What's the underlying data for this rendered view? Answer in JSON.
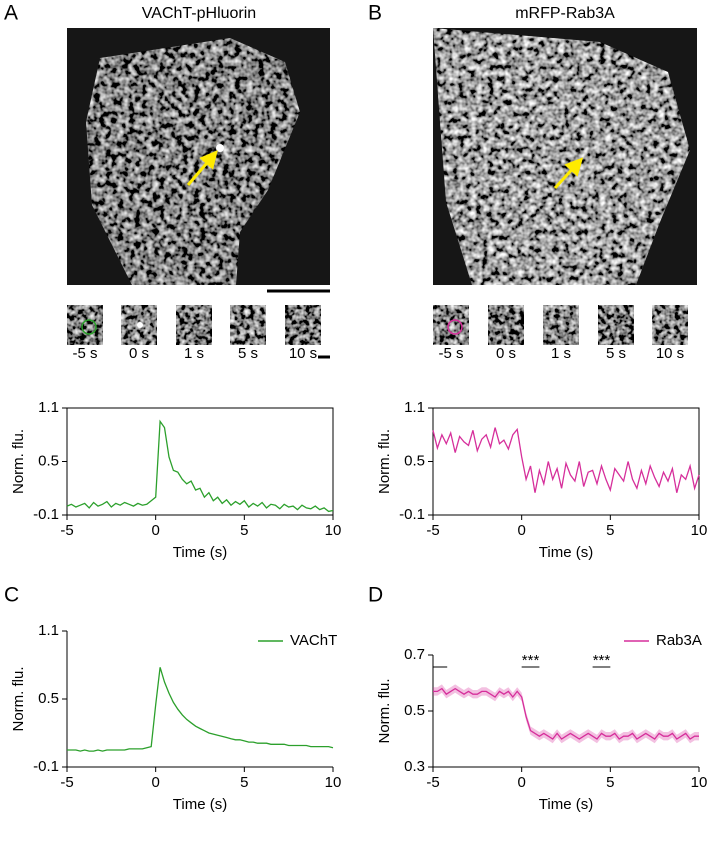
{
  "figure": {
    "panel_labels": [
      "A",
      "B",
      "C",
      "D"
    ],
    "image_titles": [
      "VAChT-pHluorin",
      "mRFP-Rab3A"
    ],
    "frame_labels": [
      "-5 s",
      "0 s",
      "1 s",
      "5 s",
      "10 s"
    ]
  },
  "chart_data": [
    {
      "type": "line",
      "frame": true,
      "color": "#2ca02c",
      "xlabel": "Time (s)",
      "ylabel": "Norm. flu.",
      "xlim": [
        -5,
        10
      ],
      "xticks": [
        -5,
        0,
        5,
        10
      ],
      "ylim": [
        -0.1,
        1.1
      ],
      "yticks": [
        -0.1,
        0.5,
        1.1
      ],
      "x": [
        -5,
        -4.75,
        -4.5,
        -4.25,
        -4,
        -3.75,
        -3.5,
        -3.25,
        -3,
        -2.75,
        -2.5,
        -2.25,
        -2,
        -1.75,
        -1.5,
        -1.25,
        -1,
        -0.75,
        -0.5,
        -0.25,
        0,
        0.25,
        0.5,
        0.75,
        1,
        1.25,
        1.5,
        1.75,
        2,
        2.25,
        2.5,
        2.75,
        3,
        3.25,
        3.5,
        3.75,
        4,
        4.25,
        4.5,
        4.75,
        5,
        5.25,
        5.5,
        5.75,
        6,
        6.25,
        6.5,
        6.75,
        7,
        7.25,
        7.5,
        7.75,
        8,
        8.25,
        8.5,
        8.75,
        9,
        9.25,
        9.5,
        9.75,
        10
      ],
      "values": [
        0.0,
        0.02,
        -0.01,
        0.01,
        0.03,
        -0.02,
        0.04,
        0.0,
        0.02,
        0.05,
        -0.01,
        0.03,
        0.01,
        0.04,
        0.02,
        0.0,
        0.03,
        0.01,
        0.02,
        0.06,
        0.1,
        0.95,
        0.88,
        0.55,
        0.4,
        0.38,
        0.3,
        0.25,
        0.28,
        0.18,
        0.2,
        0.1,
        0.15,
        0.06,
        0.1,
        0.03,
        0.07,
        0.01,
        0.05,
        0.02,
        0.06,
        -0.01,
        0.03,
        0.0,
        0.04,
        -0.02,
        0.02,
        0.01,
        -0.03,
        0.02,
        -0.01,
        0.0,
        -0.04,
        0.01,
        -0.02,
        -0.03,
        0.0,
        -0.04,
        -0.02,
        -0.06,
        -0.05
      ]
    },
    {
      "type": "line",
      "frame": true,
      "color": "#d62f9b",
      "xlabel": "Time (s)",
      "ylabel": "Norm. flu.",
      "xlim": [
        -5,
        10
      ],
      "xticks": [
        -5,
        0,
        5,
        10
      ],
      "ylim": [
        -0.1,
        1.1
      ],
      "yticks": [
        -0.1,
        0.5,
        1.1
      ],
      "x": [
        -5,
        -4.75,
        -4.5,
        -4.25,
        -4,
        -3.75,
        -3.5,
        -3.25,
        -3,
        -2.75,
        -2.5,
        -2.25,
        -2,
        -1.75,
        -1.5,
        -1.25,
        -1,
        -0.75,
        -0.5,
        -0.25,
        0,
        0.25,
        0.5,
        0.75,
        1,
        1.25,
        1.5,
        1.75,
        2,
        2.25,
        2.5,
        2.75,
        3,
        3.25,
        3.5,
        3.75,
        4,
        4.25,
        4.5,
        4.75,
        5,
        5.25,
        5.5,
        5.75,
        6,
        6.25,
        6.5,
        6.75,
        7,
        7.25,
        7.5,
        7.75,
        8,
        8.25,
        8.5,
        8.75,
        9,
        9.25,
        9.5,
        9.75,
        10
      ],
      "values": [
        0.85,
        0.65,
        0.8,
        0.7,
        0.82,
        0.6,
        0.78,
        0.72,
        0.68,
        0.85,
        0.62,
        0.75,
        0.8,
        0.66,
        0.88,
        0.7,
        0.74,
        0.64,
        0.8,
        0.86,
        0.55,
        0.3,
        0.45,
        0.15,
        0.4,
        0.25,
        0.5,
        0.3,
        0.42,
        0.2,
        0.48,
        0.35,
        0.28,
        0.5,
        0.22,
        0.38,
        0.4,
        0.25,
        0.45,
        0.3,
        0.18,
        0.42,
        0.35,
        0.28,
        0.5,
        0.3,
        0.2,
        0.4,
        0.25,
        0.45,
        0.32,
        0.22,
        0.38,
        0.28,
        0.42,
        0.15,
        0.35,
        0.3,
        0.45,
        0.2,
        0.35
      ]
    },
    {
      "type": "line",
      "frame": false,
      "legend": "upper right",
      "xlabel": "Time (s)",
      "ylabel": "Norm. flu.",
      "xlim": [
        -5,
        10
      ],
      "xticks": [
        -5,
        0,
        5,
        10
      ],
      "ylim": [
        -0.1,
        1.1
      ],
      "yticks": [
        -0.1,
        0.5,
        1.1
      ],
      "x": [
        -5,
        -4.75,
        -4.5,
        -4.25,
        -4,
        -3.75,
        -3.5,
        -3.25,
        -3,
        -2.75,
        -2.5,
        -2.25,
        -2,
        -1.75,
        -1.5,
        -1.25,
        -1,
        -0.75,
        -0.5,
        -0.25,
        0,
        0.25,
        0.5,
        0.75,
        1,
        1.25,
        1.5,
        1.75,
        2,
        2.25,
        2.5,
        2.75,
        3,
        3.25,
        3.5,
        3.75,
        4,
        4.25,
        4.5,
        4.75,
        5,
        5.25,
        5.5,
        5.75,
        6,
        6.25,
        6.5,
        6.75,
        7,
        7.25,
        7.5,
        7.75,
        8,
        8.25,
        8.5,
        8.75,
        9,
        9.25,
        9.5,
        9.75,
        10
      ],
      "series": [
        {
          "name": "VAChT",
          "color": "#2ca02c",
          "values": [
            0.05,
            0.05,
            0.05,
            0.04,
            0.05,
            0.04,
            0.04,
            0.05,
            0.04,
            0.05,
            0.05,
            0.05,
            0.05,
            0.05,
            0.06,
            0.06,
            0.06,
            0.06,
            0.07,
            0.08,
            0.45,
            0.78,
            0.65,
            0.55,
            0.47,
            0.41,
            0.36,
            0.32,
            0.29,
            0.26,
            0.24,
            0.22,
            0.2,
            0.19,
            0.18,
            0.17,
            0.16,
            0.15,
            0.14,
            0.14,
            0.13,
            0.12,
            0.12,
            0.11,
            0.11,
            0.11,
            0.1,
            0.1,
            0.1,
            0.1,
            0.09,
            0.09,
            0.09,
            0.09,
            0.09,
            0.08,
            0.08,
            0.08,
            0.08,
            0.08,
            0.07
          ]
        }
      ]
    },
    {
      "type": "line",
      "frame": false,
      "legend": "upper right",
      "xlabel": "Time (s)",
      "ylabel": "Norm. flu.",
      "xlim": [
        -5,
        10
      ],
      "xticks": [
        -5,
        0,
        5,
        10
      ],
      "ylim": [
        0.3,
        0.7
      ],
      "yticks": [
        0.3,
        0.5,
        0.7
      ],
      "x": [
        -5,
        -4.75,
        -4.5,
        -4.25,
        -4,
        -3.75,
        -3.5,
        -3.25,
        -3,
        -2.75,
        -2.5,
        -2.25,
        -2,
        -1.75,
        -1.5,
        -1.25,
        -1,
        -0.75,
        -0.5,
        -0.25,
        0,
        0.25,
        0.5,
        0.75,
        1,
        1.25,
        1.5,
        1.75,
        2,
        2.25,
        2.5,
        2.75,
        3,
        3.25,
        3.5,
        3.75,
        4,
        4.25,
        4.5,
        4.75,
        5,
        5.25,
        5.5,
        5.75,
        6,
        6.25,
        6.5,
        6.75,
        7,
        7.25,
        7.5,
        7.75,
        8,
        8.25,
        8.5,
        8.75,
        9,
        9.25,
        9.5,
        9.75,
        10
      ],
      "series": [
        {
          "name": "Rab3A",
          "color": "#d62f9b",
          "error": 0.015,
          "values": [
            0.57,
            0.57,
            0.58,
            0.56,
            0.57,
            0.58,
            0.57,
            0.56,
            0.57,
            0.56,
            0.56,
            0.57,
            0.57,
            0.56,
            0.55,
            0.57,
            0.56,
            0.57,
            0.55,
            0.57,
            0.55,
            0.48,
            0.43,
            0.42,
            0.41,
            0.42,
            0.41,
            0.4,
            0.42,
            0.4,
            0.41,
            0.42,
            0.41,
            0.4,
            0.41,
            0.42,
            0.41,
            0.4,
            0.42,
            0.41,
            0.41,
            0.42,
            0.4,
            0.41,
            0.41,
            0.42,
            0.4,
            0.41,
            0.42,
            0.41,
            0.4,
            0.42,
            0.41,
            0.41,
            0.42,
            0.4,
            0.41,
            0.42,
            0.4,
            0.41,
            0.41
          ]
        }
      ],
      "annotations": [
        {
          "x": [
            -5,
            -4.2
          ]
        },
        {
          "text": "***",
          "x": [
            0,
            1
          ]
        },
        {
          "text": "***",
          "x": [
            4,
            5
          ]
        }
      ]
    }
  ]
}
